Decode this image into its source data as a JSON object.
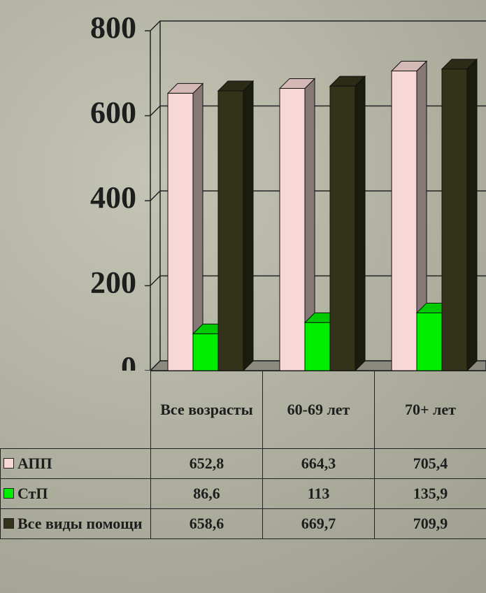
{
  "chart_data": {
    "type": "bar3d",
    "categories": [
      "Все возрасты",
      "60-69 лет",
      "70+ лет"
    ],
    "series": [
      {
        "name": "АПП",
        "color": "#f8d8d6",
        "values": [
          652.8,
          664.3,
          705.4
        ],
        "value_labels": [
          "652,8",
          "664,3",
          "705,4"
        ]
      },
      {
        "name": "СтП",
        "color": "#00ee00",
        "values": [
          86.6,
          113,
          135.9
        ],
        "value_labels": [
          "86,6",
          "113",
          "135,9"
        ]
      },
      {
        "name": "Все виды помощи",
        "color": "#33331a",
        "values": [
          658.6,
          669.7,
          709.9
        ],
        "value_labels": [
          "658,6",
          "669,7",
          "709,9"
        ]
      }
    ],
    "ylim": [
      0,
      800
    ],
    "yticks": [
      0,
      200,
      400,
      600,
      800
    ],
    "grid": true
  }
}
